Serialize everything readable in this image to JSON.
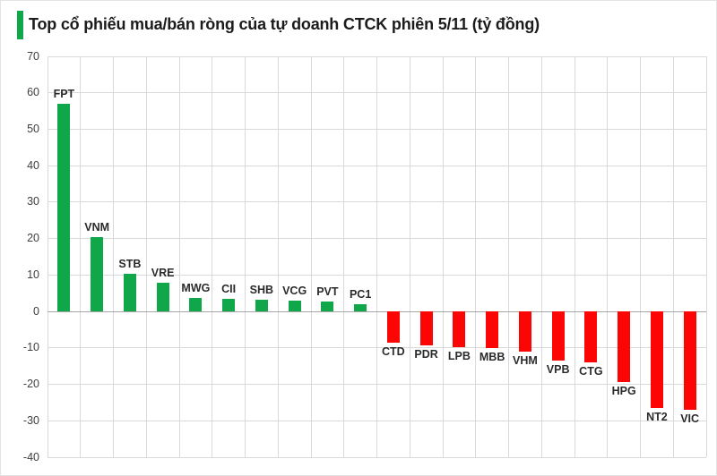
{
  "title": {
    "text": "Top cổ phiếu mua/bán ròng của tự doanh CTCK phiên 5/11 (tỷ đồng)"
  },
  "colors": {
    "accent": "#10a74a",
    "positive_bar": "#10a74a",
    "negative_bar": "#fb0505",
    "gridline": "#d9d9d9",
    "zero_axis": "#a6a6a6",
    "tick_label": "#404040",
    "category_label": "#2b2b2b",
    "title_text": "#1b1b1b"
  },
  "chart_data": {
    "type": "bar",
    "title": "Top cổ phiếu mua/bán ròng của tự doanh CTCK phiên 5/11 (tỷ đồng)",
    "xlabel": "",
    "ylabel": "",
    "unit": "tỷ đồng",
    "grid": true,
    "legend": "none",
    "ylim": [
      -40,
      70
    ],
    "yticks": [
      70,
      60,
      50,
      40,
      30,
      20,
      10,
      0,
      -10,
      -20,
      -30,
      -40
    ],
    "categories": [
      "FPT",
      "VNM",
      "STB",
      "VRE",
      "MWG",
      "CII",
      "SHB",
      "VCG",
      "PVT",
      "PC1",
      "CTD",
      "PDR",
      "LPB",
      "MBB",
      "VHM",
      "VPB",
      "CTG",
      "HPG",
      "NT2",
      "VIC"
    ],
    "values": [
      57,
      20.3,
      10.4,
      7.9,
      3.6,
      3.5,
      3.2,
      3.0,
      2.7,
      2.0,
      -8.6,
      -9.3,
      -9.8,
      -10,
      -11,
      -13.5,
      -14,
      -19.4,
      -26.5,
      -27
    ]
  }
}
